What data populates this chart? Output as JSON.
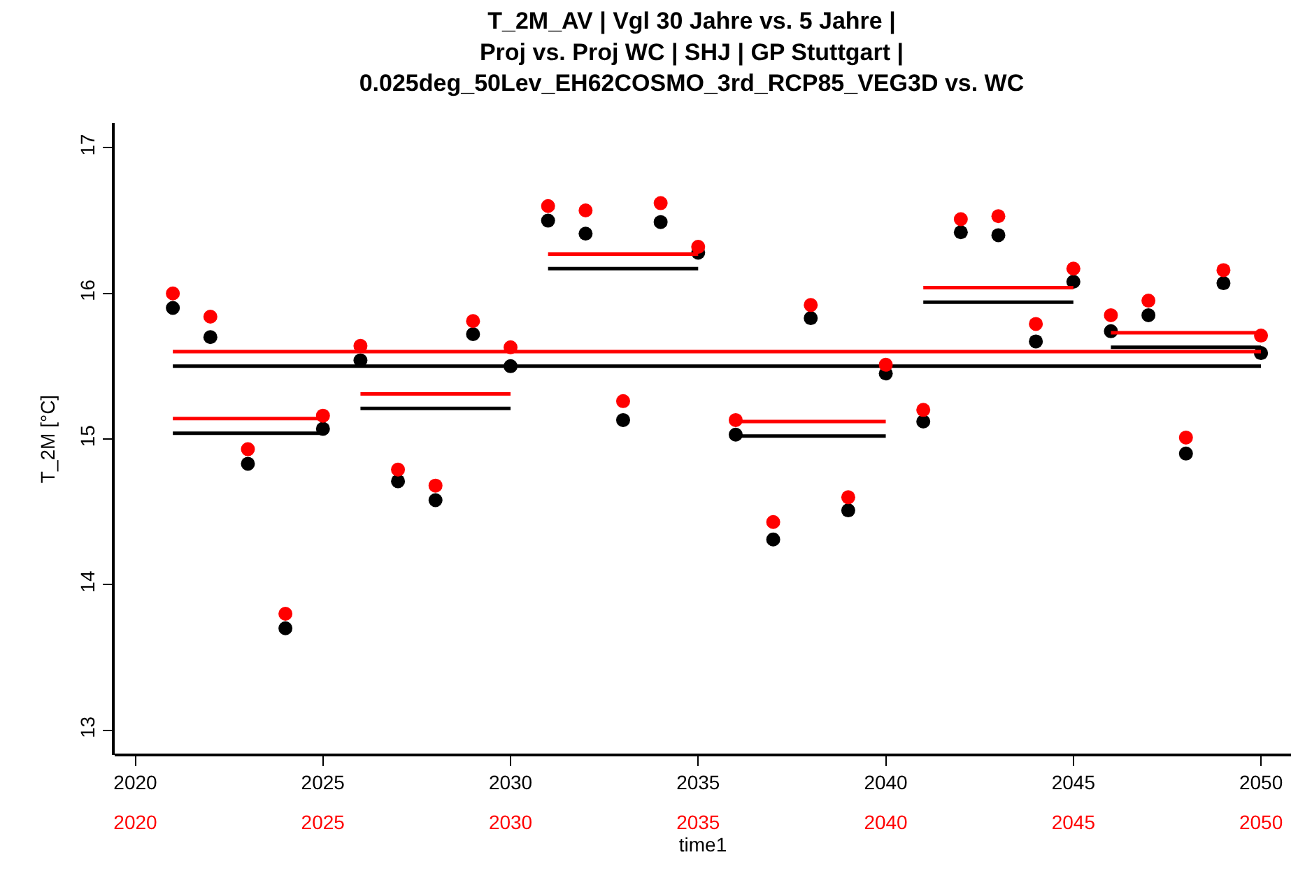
{
  "chart_data": {
    "type": "scatter",
    "title": "T_2M_AV | Vgl 30 Jahre vs. 5 Jahre |\nProj vs. Proj WC | SHJ | GP Stuttgart |\n0.025deg_50Lev_EH62COSMO_3rd_RCP85_VEG3D vs. WC",
    "xlabel": "time1",
    "ylabel": "T_2M [°C]",
    "x": [
      2021,
      2022,
      2023,
      2024,
      2025,
      2026,
      2027,
      2028,
      2029,
      2030,
      2031,
      2032,
      2033,
      2034,
      2035,
      2036,
      2037,
      2038,
      2039,
      2040,
      2041,
      2042,
      2043,
      2044,
      2045,
      2046,
      2047,
      2048,
      2049,
      2050
    ],
    "series": [
      {
        "color": "#000000",
        "values": [
          15.9,
          15.7,
          14.83,
          13.7,
          15.07,
          15.54,
          14.71,
          14.58,
          15.72,
          15.5,
          16.5,
          16.41,
          15.13,
          16.49,
          16.28,
          15.03,
          14.31,
          15.83,
          14.51,
          15.45,
          15.12,
          16.42,
          16.4,
          15.67,
          16.08,
          15.74,
          15.85,
          14.9,
          16.07,
          15.59
        ]
      },
      {
        "color": "#ff0000",
        "axis": "x2",
        "values": [
          16.0,
          15.84,
          14.93,
          13.8,
          15.16,
          15.64,
          14.79,
          14.68,
          15.81,
          15.63,
          16.6,
          16.57,
          15.26,
          16.62,
          16.32,
          15.13,
          14.43,
          15.92,
          14.6,
          15.51,
          15.2,
          16.51,
          16.53,
          15.79,
          16.17,
          15.85,
          15.95,
          15.01,
          16.16,
          15.71
        ]
      },
      {
        "type": "line",
        "marker": "none",
        "color": "#000000",
        "x": [
          2021,
          2050
        ],
        "values": [
          15.5,
          15.5
        ]
      },
      {
        "type": "line",
        "marker": "none",
        "color": "#ff0000",
        "axis": "x2",
        "x": [
          2021,
          2050
        ],
        "values": [
          15.6,
          15.6
        ]
      },
      {
        "type": "line",
        "marker": "none",
        "color": "#000000",
        "x": [
          2021,
          2025,
          2025.5,
          2026,
          2030,
          2030.5,
          2031,
          2035,
          2035.5,
          2036,
          2040,
          2040.5,
          2041,
          2045,
          2045.5,
          2046,
          2050
        ],
        "values": [
          15.04,
          15.04,
          null,
          15.21,
          15.21,
          null,
          16.17,
          16.17,
          null,
          15.02,
          15.02,
          null,
          15.94,
          15.94,
          null,
          15.63,
          15.63
        ]
      },
      {
        "type": "line",
        "marker": "none",
        "color": "#ff0000",
        "axis": "x2",
        "x": [
          2021,
          2025,
          2025.5,
          2026,
          2030,
          2030.5,
          2031,
          2035,
          2035.5,
          2036,
          2040,
          2040.5,
          2041,
          2045,
          2045.5,
          2046,
          2050
        ],
        "values": [
          15.14,
          15.14,
          null,
          15.31,
          15.31,
          null,
          16.27,
          16.27,
          null,
          15.12,
          15.12,
          null,
          16.04,
          16.04,
          null,
          15.73,
          15.73
        ]
      }
    ],
    "marker": "circle",
    "line_style": "solid",
    "xlim": [
      2019.45,
      2050.8
    ],
    "xticks": [
      2020,
      2025,
      2030,
      2035,
      2040,
      2045,
      2050
    ],
    "x2lim": [
      2019.45,
      2050.8
    ],
    "x2ticks": [
      2020,
      2025,
      2030,
      2035,
      2040,
      2045,
      2050
    ],
    "ylim": [
      12.83,
      17.17
    ],
    "yticks": [
      13,
      14,
      15,
      16,
      17
    ]
  }
}
